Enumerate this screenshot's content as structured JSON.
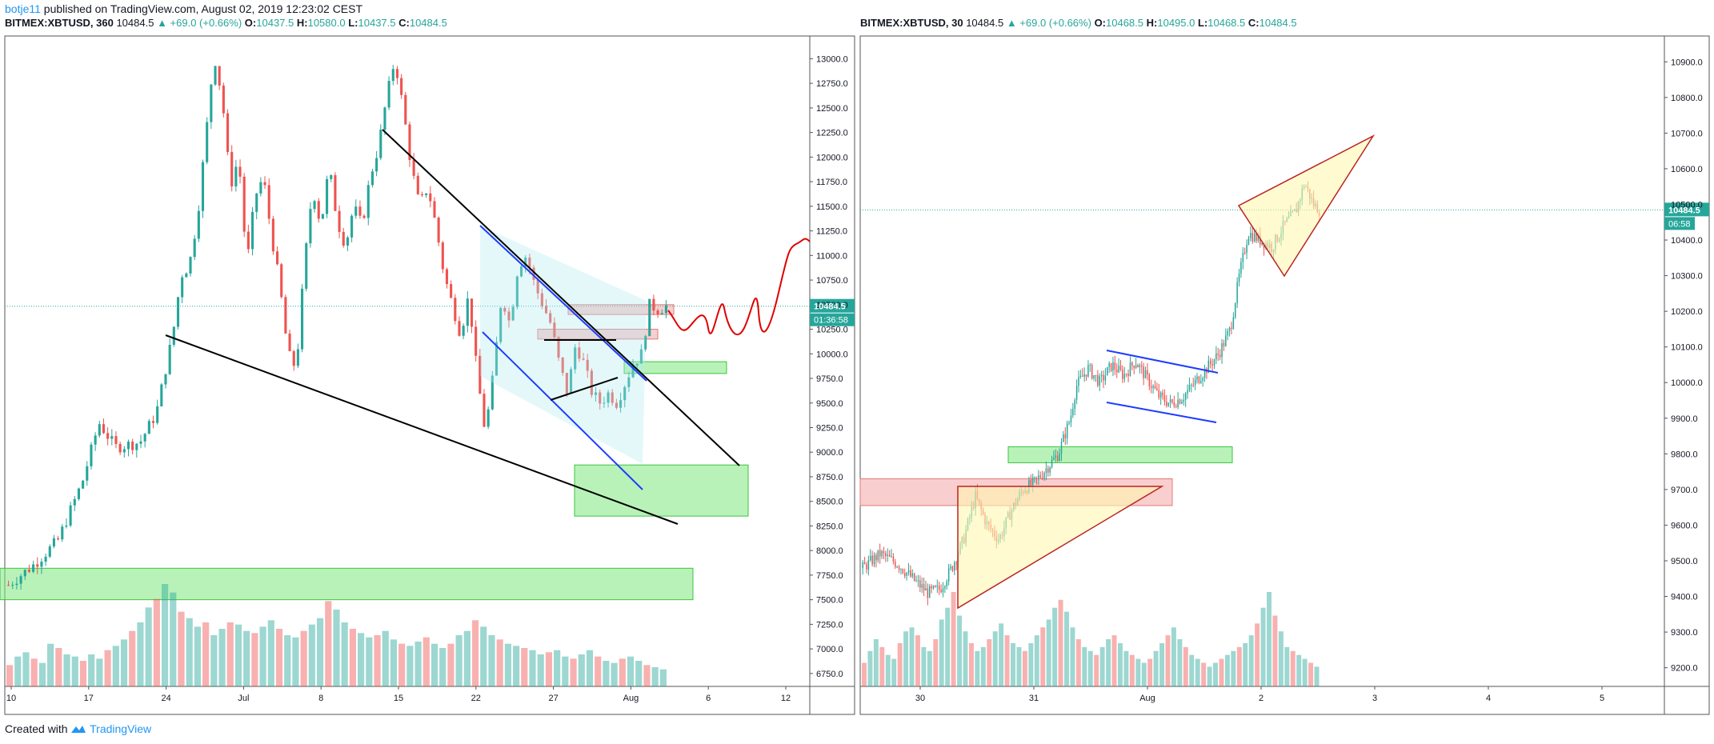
{
  "header": {
    "author": "botje11",
    "text": "published on TradingView.com, August 02, 2019 12:23:02 CEST"
  },
  "footer": {
    "prefix": "Created with",
    "brand": "TradingView"
  },
  "colors": {
    "up": "#26a69a",
    "down": "#ef5350",
    "zone": "#7ee87e",
    "resist": "#f4a6a6",
    "triangle": "#fff6b0",
    "flag": "#b2ebf2",
    "drawing": "#000000",
    "blueline": "#1e3cff",
    "scribble": "#e00000"
  },
  "panes": [
    {
      "symbol": "BITMEX:XBTUSD, 360",
      "last": "10484.5",
      "change": "▲ +69.0 (+0.66%)",
      "o": "10437.5",
      "h": "10580.0",
      "l": "10437.5",
      "c": "10484.5",
      "price_badge": "10484.5",
      "timer_badge": "01:36:58"
    },
    {
      "symbol": "BITMEX:XBTUSD, 30",
      "last": "10484.5",
      "change": "▲ +69.0 (+0.66%)",
      "o": "10468.5",
      "h": "10495.0",
      "l": "10468.5",
      "c": "10484.5",
      "price_badge": "10484.5",
      "timer_badge": "06:58"
    }
  ],
  "chart_data": [
    {
      "type": "candlestick",
      "title": "BITMEX:XBTUSD, 360",
      "x_ticks": [
        "10",
        "17",
        "24",
        "Jul",
        "8",
        "15",
        "22",
        "27",
        "Aug",
        "6",
        "12"
      ],
      "y_ticks": [
        "13000.0",
        "12750.0",
        "12500.0",
        "12250.0",
        "12000.0",
        "11750.0",
        "11500.0",
        "11250.0",
        "11000.0",
        "10750.0",
        "10500.0",
        "10250.0",
        "10000.0",
        "9750.0",
        "9500.0",
        "9250.0",
        "9000.0",
        "8750.0",
        "8500.0",
        "8250.0",
        "8000.0",
        "7750.0",
        "7500.0",
        "7250.0",
        "7000.0",
        "6750.0"
      ],
      "ylim": [
        6700,
        13150
      ],
      "last_price": 10484.5,
      "close_path": [
        [
          0,
          7650
        ],
        [
          3,
          7850
        ],
        [
          6,
          8100
        ],
        [
          9,
          8700
        ],
        [
          11,
          9300
        ],
        [
          13,
          9050
        ],
        [
          16,
          9100
        ],
        [
          18,
          9400
        ],
        [
          20,
          10200
        ],
        [
          21,
          10800
        ],
        [
          22,
          10900
        ],
        [
          23,
          11400
        ],
        [
          24,
          12200
        ],
        [
          25,
          13050
        ],
        [
          26,
          12600
        ],
        [
          27,
          11700
        ],
        [
          28,
          12000
        ],
        [
          29,
          10900
        ],
        [
          30,
          11600
        ],
        [
          31,
          11800
        ],
        [
          32,
          11200
        ],
        [
          33,
          10700
        ],
        [
          34,
          10000
        ],
        [
          35,
          9850
        ],
        [
          36,
          10900
        ],
        [
          37,
          11700
        ],
        [
          38,
          11300
        ],
        [
          39,
          11900
        ],
        [
          40,
          11350
        ],
        [
          41,
          11100
        ],
        [
          42,
          11500
        ],
        [
          43,
          11300
        ],
        [
          44,
          11800
        ],
        [
          45,
          12100
        ],
        [
          46,
          12600
        ],
        [
          47,
          13000
        ],
        [
          48,
          12500
        ],
        [
          49,
          11900
        ],
        [
          50,
          11500
        ],
        [
          51,
          11700
        ],
        [
          52,
          11300
        ],
        [
          53,
          10800
        ],
        [
          54,
          10500
        ],
        [
          55,
          10200
        ],
        [
          56,
          10600
        ],
        [
          57,
          9800
        ],
        [
          58,
          9200
        ],
        [
          59,
          9800
        ],
        [
          60,
          10600
        ],
        [
          61,
          10300
        ],
        [
          62,
          10900
        ],
        [
          63,
          11000
        ],
        [
          64,
          10700
        ],
        [
          65,
          10500
        ],
        [
          66,
          10300
        ],
        [
          67,
          9900
        ],
        [
          68,
          9600
        ],
        [
          69,
          10100
        ],
        [
          70,
          9900
        ],
        [
          71,
          9600
        ],
        [
          72,
          9500
        ],
        [
          73,
          9600
        ],
        [
          74,
          9500
        ],
        [
          75,
          9700
        ],
        [
          76,
          9900
        ],
        [
          77,
          10000
        ],
        [
          78,
          10500
        ],
        [
          79,
          10450
        ],
        [
          80,
          10485
        ]
      ],
      "volume": [
        20,
        28,
        32,
        26,
        22,
        40,
        36,
        30,
        28,
        24,
        30,
        26,
        34,
        38,
        44,
        52,
        60,
        74,
        82,
        96,
        88,
        70,
        64,
        56,
        60,
        48,
        54,
        60,
        58,
        52,
        50,
        56,
        62,
        54,
        48,
        46,
        52,
        58,
        64,
        80,
        72,
        60,
        54,
        50,
        46,
        48,
        52,
        44,
        40,
        38,
        42,
        46,
        40,
        36,
        40,
        48,
        52,
        62,
        56,
        48,
        44,
        40,
        38,
        36,
        34,
        30,
        32,
        34,
        28,
        26,
        30,
        34,
        28,
        24,
        22,
        26,
        28,
        24,
        20,
        18,
        16
      ],
      "zones": [
        {
          "kind": "support",
          "from": 7500,
          "to": 7820
        },
        {
          "kind": "support",
          "from": 8350,
          "to": 8870
        },
        {
          "kind": "support",
          "from": 9800,
          "to": 9920
        },
        {
          "kind": "resistance",
          "from": 10150,
          "to": 10250
        },
        {
          "kind": "resistance",
          "from": 10400,
          "to": 10500
        }
      ]
    },
    {
      "type": "candlestick",
      "title": "BITMEX:XBTUSD, 30",
      "x_ticks": [
        "30",
        "31",
        "Aug",
        "2",
        "3",
        "4",
        "5"
      ],
      "y_ticks": [
        "10900.0",
        "10800.0",
        "10700.0",
        "10600.0",
        "10500.0",
        "10400.0",
        "10300.0",
        "10200.0",
        "10100.0",
        "10000.0",
        "9900.0",
        "9800.0",
        "9700.0",
        "9600.0",
        "9500.0",
        "9400.0",
        "9300.0",
        "9200.0"
      ],
      "ylim": [
        9170,
        10950
      ],
      "last_price": 10484.5,
      "close_path": [
        [
          0,
          9480
        ],
        [
          6,
          9520
        ],
        [
          12,
          9490
        ],
        [
          18,
          9440
        ],
        [
          22,
          9410
        ],
        [
          26,
          9420
        ],
        [
          30,
          9480
        ],
        [
          34,
          9560
        ],
        [
          38,
          9680
        ],
        [
          42,
          9600
        ],
        [
          46,
          9560
        ],
        [
          50,
          9640
        ],
        [
          54,
          9700
        ],
        [
          58,
          9720
        ],
        [
          62,
          9760
        ],
        [
          66,
          9800
        ],
        [
          70,
          9900
        ],
        [
          72,
          9990
        ],
        [
          76,
          10040
        ],
        [
          80,
          10000
        ],
        [
          84,
          10050
        ],
        [
          88,
          10020
        ],
        [
          92,
          10060
        ],
        [
          96,
          10010
        ],
        [
          100,
          9960
        ],
        [
          104,
          9940
        ],
        [
          108,
          9960
        ],
        [
          112,
          10000
        ],
        [
          116,
          10040
        ],
        [
          120,
          10080
        ],
        [
          124,
          10150
        ],
        [
          127,
          10300
        ],
        [
          130,
          10420
        ],
        [
          134,
          10400
        ],
        [
          138,
          10380
        ],
        [
          142,
          10440
        ],
        [
          146,
          10480
        ],
        [
          149,
          10560
        ],
        [
          152,
          10500
        ],
        [
          154,
          10485
        ]
      ],
      "volume": [
        12,
        18,
        24,
        20,
        16,
        14,
        22,
        28,
        30,
        26,
        20,
        18,
        24,
        34,
        40,
        48,
        36,
        28,
        22,
        18,
        20,
        24,
        28,
        32,
        26,
        22,
        20,
        18,
        22,
        26,
        30,
        34,
        40,
        44,
        38,
        30,
        24,
        20,
        18,
        16,
        20,
        24,
        26,
        22,
        18,
        16,
        14,
        12,
        14,
        18,
        22,
        26,
        30,
        24,
        20,
        16,
        14,
        12,
        10,
        12,
        14,
        16,
        18,
        20,
        22,
        26,
        32,
        40,
        48,
        36,
        28,
        20,
        18,
        16,
        14,
        12,
        10
      ],
      "zones": [
        {
          "kind": "support",
          "from": 9775,
          "to": 9820
        },
        {
          "kind": "resistance",
          "from": 9655,
          "to": 9730
        }
      ]
    }
  ]
}
